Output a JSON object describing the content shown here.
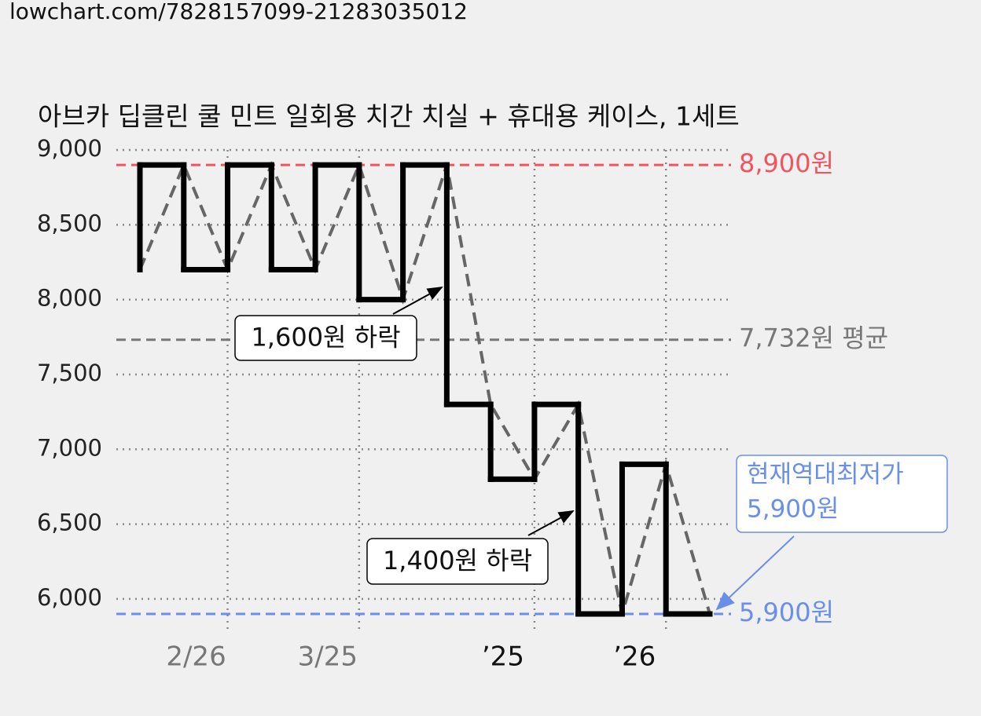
{
  "url": "lowchart.com/7828157099-21283035012",
  "chart_data": {
    "type": "step-line",
    "title": "아브카 딥클린 쿨 민트 일회용 치간 치실 + 휴대용 케이스, 1세트",
    "categories": [
      null,
      null,
      "2/26",
      null,
      null,
      "3/25",
      null,
      null,
      null,
      "’25",
      null,
      null,
      "’26",
      null
    ],
    "values": [
      8200,
      8900,
      8200,
      8900,
      8200,
      8900,
      8000,
      8900,
      7300,
      6800,
      7300,
      5900,
      6900,
      5900
    ],
    "color": "#000000",
    "trend_color": "#666666",
    "ylim": [
      5800,
      9000
    ],
    "yticks": [
      {
        "value": 6000,
        "label": "6,000"
      },
      {
        "value": 6500,
        "label": "6,500"
      },
      {
        "value": 7000,
        "label": "7,000"
      },
      {
        "value": 7500,
        "label": "7,500"
      },
      {
        "value": 8000,
        "label": "8,000"
      },
      {
        "value": 8500,
        "label": "8,500"
      },
      {
        "value": 9000,
        "label": "9,000"
      }
    ],
    "grid": true,
    "reference_lines": [
      {
        "value": 8900,
        "label": "8,900원",
        "color": "#f0555e"
      },
      {
        "value": 7732,
        "label": "7,732원 평균",
        "color": "#777777"
      },
      {
        "value": 5900,
        "label": "5,900원",
        "color": "#6a8fe8"
      }
    ],
    "annotations": [
      {
        "text": "1,600원 하락"
      },
      {
        "text": "1,400원 하락"
      }
    ],
    "callout": {
      "lines": [
        "현재역대최저가",
        "5,900원"
      ],
      "color": "#6a8fe8"
    }
  }
}
